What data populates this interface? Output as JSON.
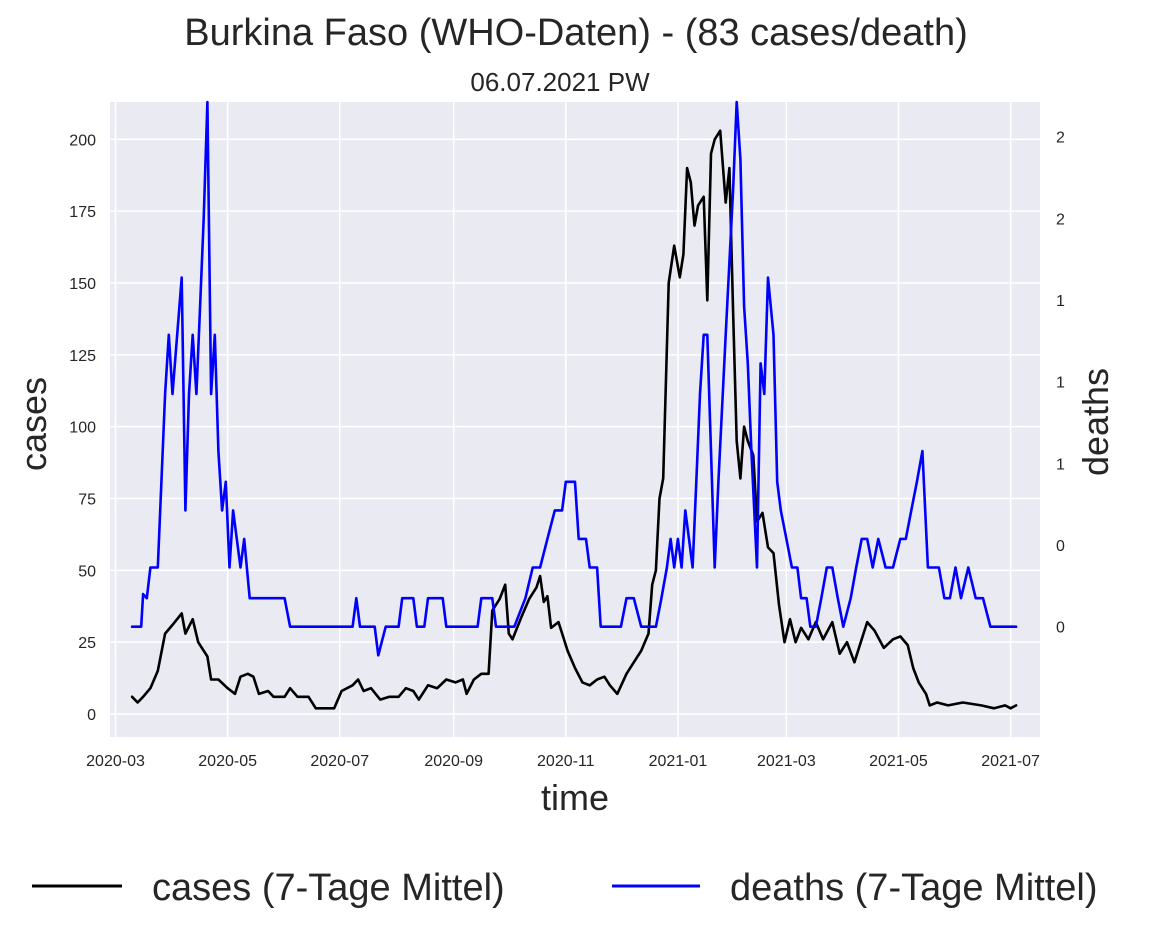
{
  "chart_data": {
    "type": "line",
    "title": "Burkina Faso (WHO-Daten) - (83 cases/death)",
    "subtitle": "06.07.2021 PW",
    "xlabel": "time",
    "ylabel": "cases",
    "y2label": "deaths",
    "xlim": [
      "2020-02-27",
      "2021-07-17"
    ],
    "ylim": [
      -8,
      213
    ],
    "y2lim": [
      -0.54,
      2.57
    ],
    "x_ticks": [
      "2020-03-01",
      "2020-05-01",
      "2020-07-01",
      "2020-09-01",
      "2020-11-01",
      "2021-01-01",
      "2021-03-01",
      "2021-05-01",
      "2021-07-01"
    ],
    "x_tick_labels": [
      "2020-03",
      "2020-05",
      "2020-07",
      "2020-09",
      "2020-11",
      "2021-01",
      "2021-03",
      "2021-05",
      "2021-07"
    ],
    "y_ticks": [
      0,
      25,
      50,
      75,
      100,
      125,
      150,
      175,
      200
    ],
    "y2_ticks": [
      0,
      0.4,
      0.8,
      1.2,
      1.6,
      2.0,
      2.4
    ],
    "y2_tick_labels": [
      "0",
      "0",
      "1",
      "1",
      "1",
      "2",
      "2"
    ],
    "grid": true,
    "legend_position": "bottom",
    "colors": {
      "cases": "#000000",
      "deaths": "#0000ff",
      "plot_bg": "#eaeaf2",
      "grid": "#ffffff",
      "deaths_axis_label": "#0000ff"
    },
    "series": [
      {
        "name": "cases (7-Tage Mittel)",
        "axis": "left",
        "color": "#000000",
        "points": [
          [
            "2020-03-10",
            6
          ],
          [
            "2020-03-13",
            4
          ],
          [
            "2020-03-16",
            6
          ],
          [
            "2020-03-20",
            9
          ],
          [
            "2020-03-24",
            15
          ],
          [
            "2020-03-28",
            28
          ],
          [
            "2020-04-01",
            31
          ],
          [
            "2020-04-06",
            35
          ],
          [
            "2020-04-08",
            28
          ],
          [
            "2020-04-12",
            33
          ],
          [
            "2020-04-15",
            25
          ],
          [
            "2020-04-20",
            20
          ],
          [
            "2020-04-22",
            12
          ],
          [
            "2020-04-26",
            12
          ],
          [
            "2020-05-01",
            9
          ],
          [
            "2020-05-05",
            7
          ],
          [
            "2020-05-08",
            13
          ],
          [
            "2020-05-12",
            14
          ],
          [
            "2020-05-15",
            13
          ],
          [
            "2020-05-18",
            7
          ],
          [
            "2020-05-23",
            8
          ],
          [
            "2020-05-26",
            6
          ],
          [
            "2020-06-01",
            6
          ],
          [
            "2020-06-04",
            9
          ],
          [
            "2020-06-08",
            6
          ],
          [
            "2020-06-14",
            6
          ],
          [
            "2020-06-18",
            2
          ],
          [
            "2020-06-23",
            2
          ],
          [
            "2020-06-28",
            2
          ],
          [
            "2020-07-02",
            8
          ],
          [
            "2020-07-08",
            10
          ],
          [
            "2020-07-11",
            12
          ],
          [
            "2020-07-14",
            8
          ],
          [
            "2020-07-18",
            9
          ],
          [
            "2020-07-23",
            5
          ],
          [
            "2020-07-28",
            6
          ],
          [
            "2020-08-02",
            6
          ],
          [
            "2020-08-06",
            9
          ],
          [
            "2020-08-10",
            8
          ],
          [
            "2020-08-13",
            5
          ],
          [
            "2020-08-18",
            10
          ],
          [
            "2020-08-23",
            9
          ],
          [
            "2020-08-28",
            12
          ],
          [
            "2020-09-02",
            11
          ],
          [
            "2020-09-06",
            12
          ],
          [
            "2020-09-08",
            7
          ],
          [
            "2020-09-12",
            12
          ],
          [
            "2020-09-16",
            14
          ],
          [
            "2020-09-20",
            14
          ],
          [
            "2020-09-22",
            36
          ],
          [
            "2020-09-26",
            40
          ],
          [
            "2020-09-29",
            45
          ],
          [
            "2020-10-01",
            28
          ],
          [
            "2020-10-03",
            26
          ],
          [
            "2020-10-08",
            34
          ],
          [
            "2020-10-12",
            40
          ],
          [
            "2020-10-16",
            44
          ],
          [
            "2020-10-18",
            48
          ],
          [
            "2020-10-20",
            39
          ],
          [
            "2020-10-22",
            41
          ],
          [
            "2020-10-24",
            30
          ],
          [
            "2020-10-28",
            32
          ],
          [
            "2020-11-02",
            22
          ],
          [
            "2020-11-06",
            16
          ],
          [
            "2020-11-10",
            11
          ],
          [
            "2020-11-14",
            10
          ],
          [
            "2020-11-18",
            12
          ],
          [
            "2020-11-22",
            13
          ],
          [
            "2020-11-25",
            10
          ],
          [
            "2020-11-29",
            7
          ],
          [
            "2020-12-04",
            14
          ],
          [
            "2020-12-08",
            18
          ],
          [
            "2020-12-12",
            22
          ],
          [
            "2020-12-16",
            28
          ],
          [
            "2020-12-18",
            45
          ],
          [
            "2020-12-20",
            50
          ],
          [
            "2020-12-22",
            75
          ],
          [
            "2020-12-24",
            82
          ],
          [
            "2020-12-27",
            150
          ],
          [
            "2020-12-30",
            163
          ],
          [
            "2021-01-02",
            152
          ],
          [
            "2021-01-04",
            160
          ],
          [
            "2021-01-06",
            190
          ],
          [
            "2021-01-08",
            185
          ],
          [
            "2021-01-10",
            170
          ],
          [
            "2021-01-12",
            177
          ],
          [
            "2021-01-15",
            180
          ],
          [
            "2021-01-17",
            144
          ],
          [
            "2021-01-19",
            195
          ],
          [
            "2021-01-21",
            200
          ],
          [
            "2021-01-24",
            203
          ],
          [
            "2021-01-27",
            178
          ],
          [
            "2021-01-29",
            190
          ],
          [
            "2021-01-31",
            140
          ],
          [
            "2021-02-02",
            95
          ],
          [
            "2021-02-04",
            82
          ],
          [
            "2021-02-06",
            100
          ],
          [
            "2021-02-08",
            95
          ],
          [
            "2021-02-11",
            90
          ],
          [
            "2021-02-13",
            67
          ],
          [
            "2021-02-16",
            70
          ],
          [
            "2021-02-19",
            58
          ],
          [
            "2021-02-22",
            56
          ],
          [
            "2021-02-25",
            38
          ],
          [
            "2021-02-28",
            25
          ],
          [
            "2021-03-03",
            33
          ],
          [
            "2021-03-06",
            25
          ],
          [
            "2021-03-09",
            30
          ],
          [
            "2021-03-13",
            26
          ],
          [
            "2021-03-17",
            32
          ],
          [
            "2021-03-21",
            26
          ],
          [
            "2021-03-26",
            32
          ],
          [
            "2021-03-30",
            21
          ],
          [
            "2021-04-03",
            25
          ],
          [
            "2021-04-07",
            18
          ],
          [
            "2021-04-11",
            26
          ],
          [
            "2021-04-14",
            32
          ],
          [
            "2021-04-18",
            29
          ],
          [
            "2021-04-23",
            23
          ],
          [
            "2021-04-28",
            26
          ],
          [
            "2021-05-02",
            27
          ],
          [
            "2021-05-06",
            24
          ],
          [
            "2021-05-09",
            16
          ],
          [
            "2021-05-12",
            11
          ],
          [
            "2021-05-16",
            7
          ],
          [
            "2021-05-18",
            3
          ],
          [
            "2021-05-22",
            4
          ],
          [
            "2021-05-28",
            3
          ],
          [
            "2021-06-05",
            4
          ],
          [
            "2021-06-15",
            3
          ],
          [
            "2021-06-22",
            2
          ],
          [
            "2021-06-28",
            3
          ],
          [
            "2021-07-01",
            2
          ],
          [
            "2021-07-04",
            3
          ]
        ]
      },
      {
        "name": "deaths (7-Tage Mittel)",
        "axis": "right",
        "color": "#0000ff",
        "points": [
          [
            "2020-03-10",
            0.0
          ],
          [
            "2020-03-15",
            0.0
          ],
          [
            "2020-03-16",
            0.16
          ],
          [
            "2020-03-18",
            0.14
          ],
          [
            "2020-03-20",
            0.29
          ],
          [
            "2020-03-24",
            0.29
          ],
          [
            "2020-03-28",
            1.14
          ],
          [
            "2020-03-30",
            1.43
          ],
          [
            "2020-04-01",
            1.14
          ],
          [
            "2020-04-06",
            1.71
          ],
          [
            "2020-04-08",
            0.57
          ],
          [
            "2020-04-10",
            1.14
          ],
          [
            "2020-04-12",
            1.43
          ],
          [
            "2020-04-14",
            1.14
          ],
          [
            "2020-04-16",
            1.57
          ],
          [
            "2020-04-18",
            2.0
          ],
          [
            "2020-04-20",
            2.57
          ],
          [
            "2020-04-22",
            1.14
          ],
          [
            "2020-04-24",
            1.43
          ],
          [
            "2020-04-26",
            0.86
          ],
          [
            "2020-04-28",
            0.57
          ],
          [
            "2020-04-30",
            0.71
          ],
          [
            "2020-05-02",
            0.29
          ],
          [
            "2020-05-04",
            0.57
          ],
          [
            "2020-05-08",
            0.29
          ],
          [
            "2020-05-10",
            0.43
          ],
          [
            "2020-05-13",
            0.14
          ],
          [
            "2020-05-20",
            0.14
          ],
          [
            "2020-05-24",
            0.14
          ],
          [
            "2020-06-01",
            0.14
          ],
          [
            "2020-06-04",
            0.0
          ],
          [
            "2020-07-08",
            0.0
          ],
          [
            "2020-07-10",
            0.14
          ],
          [
            "2020-07-12",
            0.0
          ],
          [
            "2020-07-20",
            0.0
          ],
          [
            "2020-07-22",
            -0.14
          ],
          [
            "2020-07-26",
            0.0
          ],
          [
            "2020-08-02",
            0.0
          ],
          [
            "2020-08-04",
            0.14
          ],
          [
            "2020-08-10",
            0.14
          ],
          [
            "2020-08-12",
            0.0
          ],
          [
            "2020-08-16",
            0.0
          ],
          [
            "2020-08-18",
            0.14
          ],
          [
            "2020-08-26",
            0.14
          ],
          [
            "2020-08-28",
            0.0
          ],
          [
            "2020-09-14",
            0.0
          ],
          [
            "2020-09-16",
            0.14
          ],
          [
            "2020-09-22",
            0.14
          ],
          [
            "2020-09-24",
            0.0
          ],
          [
            "2020-10-04",
            0.0
          ],
          [
            "2020-10-10",
            0.14
          ],
          [
            "2020-10-14",
            0.29
          ],
          [
            "2020-10-18",
            0.29
          ],
          [
            "2020-10-22",
            0.43
          ],
          [
            "2020-10-26",
            0.57
          ],
          [
            "2020-10-30",
            0.57
          ],
          [
            "2020-11-01",
            0.71
          ],
          [
            "2020-11-06",
            0.71
          ],
          [
            "2020-11-08",
            0.43
          ],
          [
            "2020-11-12",
            0.43
          ],
          [
            "2020-11-14",
            0.29
          ],
          [
            "2020-11-18",
            0.29
          ],
          [
            "2020-11-20",
            0.0
          ],
          [
            "2020-12-01",
            0.0
          ],
          [
            "2020-12-04",
            0.14
          ],
          [
            "2020-12-08",
            0.14
          ],
          [
            "2020-12-12",
            0.0
          ],
          [
            "2020-12-20",
            0.0
          ],
          [
            "2020-12-23",
            0.14
          ],
          [
            "2020-12-26",
            0.29
          ],
          [
            "2020-12-28",
            0.43
          ],
          [
            "2020-12-30",
            0.29
          ],
          [
            "2021-01-01",
            0.43
          ],
          [
            "2021-01-03",
            0.29
          ],
          [
            "2021-01-05",
            0.57
          ],
          [
            "2021-01-07",
            0.43
          ],
          [
            "2021-01-09",
            0.29
          ],
          [
            "2021-01-11",
            0.71
          ],
          [
            "2021-01-13",
            1.14
          ],
          [
            "2021-01-15",
            1.43
          ],
          [
            "2021-01-17",
            1.43
          ],
          [
            "2021-01-19",
            0.86
          ],
          [
            "2021-01-21",
            0.29
          ],
          [
            "2021-01-23",
            0.71
          ],
          [
            "2021-01-27",
            1.43
          ],
          [
            "2021-01-31",
            2.14
          ],
          [
            "2021-02-02",
            2.57
          ],
          [
            "2021-02-04",
            2.29
          ],
          [
            "2021-02-06",
            1.57
          ],
          [
            "2021-02-08",
            1.29
          ],
          [
            "2021-02-10",
            0.86
          ],
          [
            "2021-02-13",
            0.29
          ],
          [
            "2021-02-15",
            1.29
          ],
          [
            "2021-02-17",
            1.14
          ],
          [
            "2021-02-19",
            1.71
          ],
          [
            "2021-02-22",
            1.43
          ],
          [
            "2021-02-24",
            0.71
          ],
          [
            "2021-02-26",
            0.57
          ],
          [
            "2021-03-01",
            0.43
          ],
          [
            "2021-03-04",
            0.29
          ],
          [
            "2021-03-07",
            0.29
          ],
          [
            "2021-03-09",
            0.14
          ],
          [
            "2021-03-12",
            0.14
          ],
          [
            "2021-03-14",
            0.0
          ],
          [
            "2021-03-17",
            0.0
          ],
          [
            "2021-03-20",
            0.14
          ],
          [
            "2021-03-23",
            0.29
          ],
          [
            "2021-03-26",
            0.29
          ],
          [
            "2021-03-29",
            0.14
          ],
          [
            "2021-04-01",
            0.0
          ],
          [
            "2021-04-05",
            0.14
          ],
          [
            "2021-04-08",
            0.29
          ],
          [
            "2021-04-11",
            0.43
          ],
          [
            "2021-04-14",
            0.43
          ],
          [
            "2021-04-17",
            0.29
          ],
          [
            "2021-04-20",
            0.43
          ],
          [
            "2021-04-24",
            0.29
          ],
          [
            "2021-04-28",
            0.29
          ],
          [
            "2021-05-02",
            0.43
          ],
          [
            "2021-05-05",
            0.43
          ],
          [
            "2021-05-08",
            0.57
          ],
          [
            "2021-05-11",
            0.71
          ],
          [
            "2021-05-14",
            0.86
          ],
          [
            "2021-05-17",
            0.29
          ],
          [
            "2021-05-20",
            0.29
          ],
          [
            "2021-05-23",
            0.29
          ],
          [
            "2021-05-26",
            0.14
          ],
          [
            "2021-05-29",
            0.14
          ],
          [
            "2021-06-01",
            0.29
          ],
          [
            "2021-06-04",
            0.14
          ],
          [
            "2021-06-08",
            0.29
          ],
          [
            "2021-06-12",
            0.14
          ],
          [
            "2021-06-16",
            0.14
          ],
          [
            "2021-06-20",
            0.0
          ],
          [
            "2021-07-04",
            0.0
          ]
        ]
      }
    ]
  }
}
